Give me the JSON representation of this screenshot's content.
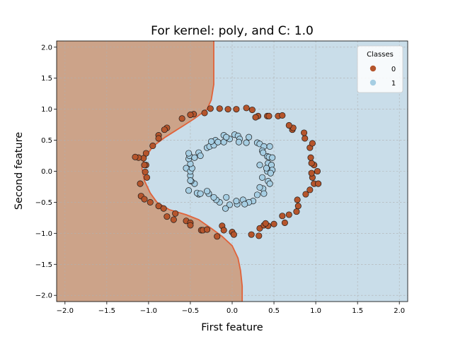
{
  "chart_data": {
    "type": "scatter",
    "title": "For kernel: poly, and C: 1.0",
    "xlabel": "First feature",
    "ylabel": "Second feature",
    "xlim": [
      -2.1,
      2.1
    ],
    "ylim": [
      -2.1,
      2.1
    ],
    "xticks": [
      "−2.0",
      "−1.5",
      "−1.0",
      "−0.5",
      "0.0",
      "0.5",
      "1.0",
      "1.5",
      "2.0"
    ],
    "yticks": [
      "−2.0",
      "−1.5",
      "−1.0",
      "−0.5",
      "0.0",
      "0.5",
      "1.0",
      "1.5",
      "2.0"
    ],
    "grid": true,
    "legend": {
      "title": "Classes",
      "placement": "top-right"
    },
    "background_region_colors": {
      "class_0": "#cca389",
      "class_1": "#c9dde9"
    },
    "boundary_color": "#e0623a",
    "decision_boundary": {
      "comment_free": true,
      "top_x": -0.22,
      "points": [
        [
          -0.22,
          2.1
        ],
        [
          -0.22,
          1.4
        ],
        [
          -0.25,
          1.15
        ],
        [
          -0.3,
          1.0
        ],
        [
          -0.45,
          0.85
        ],
        [
          -0.6,
          0.72
        ],
        [
          -0.8,
          0.55
        ],
        [
          -0.95,
          0.4
        ],
        [
          -1.05,
          0.2
        ],
        [
          -1.08,
          0.05
        ],
        [
          -1.05,
          -0.15
        ],
        [
          -0.98,
          -0.35
        ],
        [
          -0.9,
          -0.5
        ],
        [
          -0.75,
          -0.62
        ],
        [
          -0.55,
          -0.7
        ],
        [
          -0.4,
          -0.78
        ],
        [
          -0.25,
          -0.92
        ],
        [
          -0.12,
          -1.05
        ],
        [
          0.0,
          -1.2
        ],
        [
          0.07,
          -1.4
        ],
        [
          0.1,
          -1.6
        ],
        [
          0.12,
          -1.85
        ],
        [
          0.12,
          -2.1
        ]
      ]
    },
    "series": [
      {
        "name": "0",
        "color": "#b5552c",
        "points": [
          [
            -0.26,
            1.01
          ],
          [
            -0.15,
            1.01
          ],
          [
            -0.05,
            1.0
          ],
          [
            0.05,
            1.0
          ],
          [
            0.17,
            1.02
          ],
          [
            -0.33,
            0.94
          ],
          [
            -0.46,
            0.92
          ],
          [
            -0.5,
            0.91
          ],
          [
            -0.6,
            0.85
          ],
          [
            -0.78,
            0.7
          ],
          [
            -0.81,
            0.67
          ],
          [
            -0.88,
            0.58
          ],
          [
            -0.88,
            0.53
          ],
          [
            -0.95,
            0.41
          ],
          [
            -1.03,
            0.29
          ],
          [
            -1.06,
            0.21
          ],
          [
            -1.12,
            0.22
          ],
          [
            -1.16,
            0.23
          ],
          [
            -1.03,
            0.1
          ],
          [
            -1.05,
            0.1
          ],
          [
            -1.04,
            -0.01
          ],
          [
            -1.02,
            -0.1
          ],
          [
            -1.1,
            -0.2
          ],
          [
            -1.09,
            -0.4
          ],
          [
            -1.05,
            -0.45
          ],
          [
            -0.98,
            -0.5
          ],
          [
            -0.88,
            -0.56
          ],
          [
            -0.82,
            -0.6
          ],
          [
            -0.78,
            -0.73
          ],
          [
            -0.68,
            -0.68
          ],
          [
            -0.7,
            -0.78
          ],
          [
            -0.55,
            -0.8
          ],
          [
            -0.5,
            -0.83
          ],
          [
            -0.5,
            -0.87
          ],
          [
            -0.37,
            -0.95
          ],
          [
            -0.35,
            -0.95
          ],
          [
            -0.3,
            -0.94
          ],
          [
            -0.12,
            -0.88
          ],
          [
            -0.1,
            -0.95
          ],
          [
            -0.18,
            -1.05
          ],
          [
            0.0,
            -0.98
          ],
          [
            0.02,
            -1.02
          ],
          [
            0.23,
            -1.02
          ],
          [
            0.32,
            -1.04
          ],
          [
            0.33,
            -0.92
          ],
          [
            0.38,
            -0.87
          ],
          [
            0.43,
            -0.88
          ],
          [
            0.5,
            -0.85
          ],
          [
            0.4,
            -0.84
          ],
          [
            0.6,
            -0.72
          ],
          [
            0.68,
            -0.7
          ],
          [
            0.63,
            -0.83
          ],
          [
            0.77,
            -0.65
          ],
          [
            0.79,
            -0.56
          ],
          [
            0.78,
            -0.46
          ],
          [
            0.88,
            -0.37
          ],
          [
            0.93,
            -0.3
          ],
          [
            0.98,
            -0.2
          ],
          [
            1.03,
            -0.2
          ],
          [
            0.96,
            -0.1
          ],
          [
            0.95,
            -0.03
          ],
          [
            1.02,
            0.0
          ],
          [
            0.98,
            0.1
          ],
          [
            0.95,
            0.13
          ],
          [
            0.94,
            0.22
          ],
          [
            0.93,
            0.38
          ],
          [
            0.96,
            0.45
          ],
          [
            0.87,
            0.53
          ],
          [
            0.86,
            0.62
          ],
          [
            0.72,
            0.67
          ],
          [
            0.73,
            0.7
          ],
          [
            0.68,
            0.74
          ],
          [
            0.55,
            0.89
          ],
          [
            0.6,
            0.9
          ],
          [
            0.42,
            0.89
          ],
          [
            0.44,
            0.89
          ],
          [
            0.31,
            0.89
          ],
          [
            0.28,
            0.87
          ],
          [
            0.24,
            0.99
          ]
        ]
      },
      {
        "name": "1",
        "color": "#a6cee3",
        "points": [
          [
            -0.1,
            0.58
          ],
          [
            -0.03,
            0.52
          ],
          [
            0.03,
            0.59
          ],
          [
            0.07,
            0.57
          ],
          [
            0.09,
            0.52
          ],
          [
            0.17,
            0.46
          ],
          [
            0.2,
            0.55
          ],
          [
            0.3,
            0.46
          ],
          [
            0.33,
            0.44
          ],
          [
            0.38,
            0.4
          ],
          [
            0.45,
            0.4
          ],
          [
            0.36,
            0.33
          ],
          [
            0.42,
            0.24
          ],
          [
            0.44,
            0.23
          ],
          [
            0.48,
            0.22
          ],
          [
            0.43,
            0.13
          ],
          [
            0.47,
            0.1
          ],
          [
            0.33,
            0.1
          ],
          [
            0.48,
            0.02
          ],
          [
            0.42,
            0.0
          ],
          [
            0.46,
            -0.03
          ],
          [
            0.36,
            -0.1
          ],
          [
            0.43,
            -0.16
          ],
          [
            0.45,
            -0.2
          ],
          [
            0.37,
            -0.28
          ],
          [
            0.33,
            -0.26
          ],
          [
            0.38,
            -0.36
          ],
          [
            0.3,
            -0.38
          ],
          [
            0.25,
            -0.48
          ],
          [
            0.2,
            -0.5
          ],
          [
            0.13,
            -0.46
          ],
          [
            0.15,
            -0.53
          ],
          [
            0.06,
            -0.53
          ],
          [
            0.05,
            -0.48
          ],
          [
            -0.03,
            -0.54
          ],
          [
            -0.08,
            -0.6
          ],
          [
            -0.07,
            -0.42
          ],
          [
            -0.15,
            -0.5
          ],
          [
            -0.19,
            -0.46
          ],
          [
            -0.22,
            -0.42
          ],
          [
            -0.28,
            -0.36
          ],
          [
            -0.3,
            -0.32
          ],
          [
            -0.4,
            -0.37
          ],
          [
            -0.42,
            -0.35
          ],
          [
            -0.52,
            -0.31
          ],
          [
            -0.45,
            -0.2
          ],
          [
            -0.49,
            -0.16
          ],
          [
            -0.5,
            -0.07
          ],
          [
            -0.55,
            0.05
          ],
          [
            -0.5,
            0.0
          ],
          [
            -0.48,
            0.05
          ],
          [
            -0.5,
            0.12
          ],
          [
            -0.52,
            0.2
          ],
          [
            -0.51,
            0.25
          ],
          [
            -0.45,
            0.22
          ],
          [
            -0.52,
            0.29
          ],
          [
            -0.4,
            0.3
          ],
          [
            -0.38,
            0.25
          ],
          [
            -0.3,
            0.38
          ],
          [
            -0.27,
            0.4
          ],
          [
            -0.22,
            0.42
          ],
          [
            -0.2,
            0.5
          ],
          [
            -0.17,
            0.47
          ],
          [
            -0.25,
            0.48
          ],
          [
            -0.1,
            0.47
          ],
          [
            -0.07,
            0.55
          ],
          [
            0.08,
            0.47
          ],
          [
            0.37,
            0.3
          ],
          [
            0.41,
            0.05
          ],
          [
            -0.5,
            -0.15
          ],
          [
            -0.38,
            -0.36
          ]
        ]
      }
    ]
  }
}
